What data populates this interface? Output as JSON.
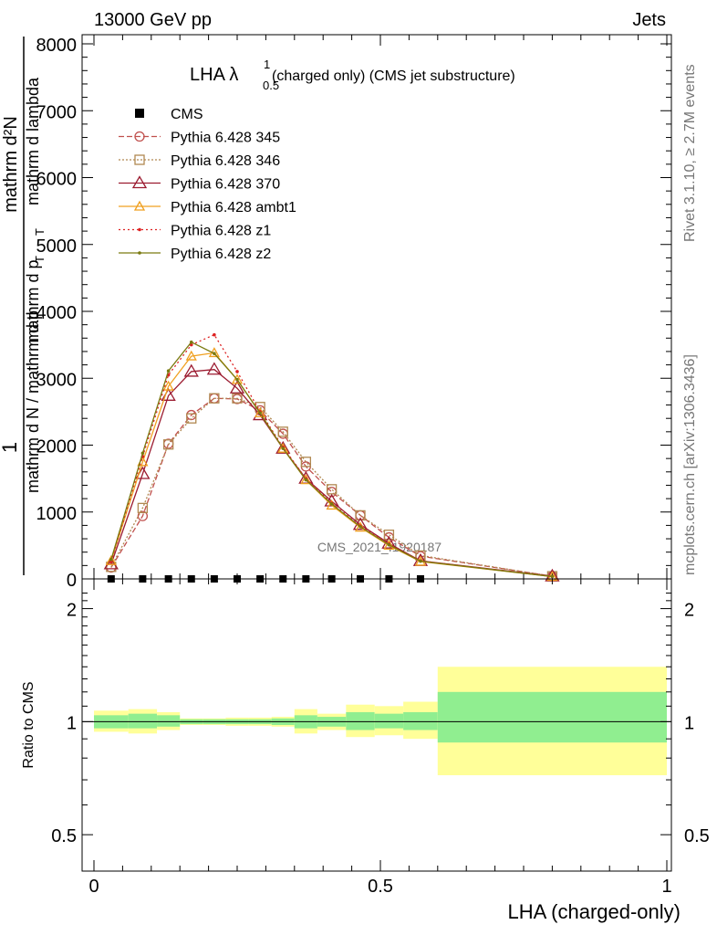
{
  "header": {
    "left": "13000 GeV pp",
    "right": "Jets",
    "rivet": "Rivet 3.1.10, ≥ 2.7M events",
    "mcplots": "mcplots.cern.ch [arXiv:1306.3436]",
    "watermark": "CMS_2021_I1920187"
  },
  "main_plot": {
    "title_main": "LHA λ",
    "title_sup": "1",
    "title_sub": "0.5",
    "title_rest": " (charged only) (CMS jet substructure)",
    "ylabel_one": "1",
    "ylabel_num": "mathrm d²N",
    "ylabel_den1": "mathrm d N / mathrm d p",
    "ylabel_den2": "T",
    "ylabel_num_alt": "mathrm d p",
    "ylabel_num_alt_sub": "T",
    "ylabel_num_alt2": " mathrm d lambda"
  },
  "ratio_plot": {
    "ylabel": "Ratio to CMS"
  },
  "xlabel": "LHA (charged-only)",
  "chart_data": {
    "type": "line",
    "xlim": [
      0,
      1
    ],
    "ylim": [
      0,
      8000
    ],
    "yticks": [
      "0",
      "1000",
      "2000",
      "3000",
      "4000",
      "5000",
      "6000",
      "7000",
      "8000"
    ],
    "yticks_values": [
      0,
      1000,
      2000,
      3000,
      4000,
      5000,
      6000,
      7000,
      8000
    ],
    "xticks": [
      "0",
      "0.5",
      "1"
    ],
    "xticks_values": [
      0,
      0.5,
      1
    ],
    "ratio_ylim": [
      0.4,
      2.4
    ],
    "ratio_yticks": [
      "0.5",
      "1",
      "2"
    ],
    "ratio_yticks_values": [
      0.5,
      1,
      2
    ],
    "log_scale_ratio": true,
    "data": {
      "name": "CMS",
      "x": [
        0.03,
        0.085,
        0.13,
        0.17,
        0.21,
        0.25,
        0.29,
        0.33,
        0.37,
        0.415,
        0.465,
        0.515,
        0.57
      ],
      "y": [
        0,
        0,
        0,
        0,
        0,
        0,
        0,
        0,
        0,
        0,
        0,
        0,
        0
      ],
      "color": "#000000"
    },
    "series": [
      {
        "name": "Pythia 6.428 345",
        "color": "#c0504d",
        "dash": "6,3",
        "marker": "circle-open",
        "x": [
          0.03,
          0.085,
          0.13,
          0.17,
          0.21,
          0.25,
          0.29,
          0.33,
          0.37,
          0.415,
          0.465,
          0.515,
          0.57,
          0.8
        ],
        "y": [
          170,
          940,
          2020,
          2450,
          2700,
          2690,
          2520,
          2170,
          1680,
          1300,
          950,
          620,
          340,
          40
        ]
      },
      {
        "name": "Pythia 6.428 346",
        "color": "#b08850",
        "dash": "2,2",
        "marker": "square-open",
        "x": [
          0.03,
          0.085,
          0.13,
          0.17,
          0.21,
          0.25,
          0.29,
          0.33,
          0.37,
          0.415,
          0.465,
          0.515,
          0.57,
          0.8
        ],
        "y": [
          180,
          1060,
          2010,
          2400,
          2700,
          2700,
          2570,
          2200,
          1750,
          1340,
          950,
          660,
          350,
          40
        ]
      },
      {
        "name": "Pythia 6.428 370",
        "color": "#9b1b30",
        "dash": "",
        "marker": "triangle-open",
        "x": [
          0.03,
          0.085,
          0.13,
          0.17,
          0.21,
          0.25,
          0.29,
          0.33,
          0.37,
          0.415,
          0.465,
          0.515,
          0.57,
          0.8
        ],
        "y": [
          220,
          1570,
          2740,
          3100,
          3130,
          2850,
          2450,
          1950,
          1500,
          1160,
          810,
          530,
          270,
          40
        ]
      },
      {
        "name": "Pythia 6.428 ambt1",
        "color": "#f0a020",
        "dash": "",
        "marker": "triangle-open-small",
        "x": [
          0.03,
          0.085,
          0.13,
          0.17,
          0.21,
          0.25,
          0.29,
          0.33,
          0.37,
          0.415,
          0.465,
          0.515,
          0.57,
          0.8
        ],
        "y": [
          270,
          1750,
          2880,
          3330,
          3380,
          2980,
          2480,
          1950,
          1480,
          1100,
          770,
          500,
          260,
          35
        ]
      },
      {
        "name": "Pythia 6.428 z1",
        "color": "#dd2222",
        "dash": "2,3",
        "marker": "dot",
        "x": [
          0.03,
          0.085,
          0.13,
          0.17,
          0.21,
          0.25,
          0.29,
          0.33,
          0.37,
          0.415,
          0.465,
          0.515,
          0.57,
          0.8
        ],
        "y": [
          260,
          1830,
          3050,
          3500,
          3650,
          3100,
          2500,
          1970,
          1500,
          1130,
          790,
          520,
          270,
          35
        ]
      },
      {
        "name": "Pythia 6.428 z2",
        "color": "#7a7a10",
        "dash": "",
        "marker": "dot",
        "x": [
          0.03,
          0.085,
          0.13,
          0.17,
          0.21,
          0.25,
          0.29,
          0.33,
          0.37,
          0.415,
          0.465,
          0.515,
          0.57,
          0.8
        ],
        "y": [
          290,
          1880,
          3110,
          3540,
          3370,
          2980,
          2480,
          1950,
          1480,
          1120,
          780,
          510,
          265,
          35
        ]
      }
    ],
    "ratio_bands": [
      {
        "x0": 0.0,
        "x1": 0.06,
        "inner": [
          0.96,
          1.04
        ],
        "outer": [
          0.94,
          1.07
        ]
      },
      {
        "x0": 0.06,
        "x1": 0.11,
        "inner": [
          0.96,
          1.05
        ],
        "outer": [
          0.93,
          1.08
        ]
      },
      {
        "x0": 0.11,
        "x1": 0.15,
        "inner": [
          0.97,
          1.04
        ],
        "outer": [
          0.95,
          1.06
        ]
      },
      {
        "x0": 0.15,
        "x1": 0.19,
        "inner": [
          0.985,
          1.015
        ],
        "outer": [
          0.98,
          1.02
        ]
      },
      {
        "x0": 0.19,
        "x1": 0.23,
        "inner": [
          0.985,
          1.015
        ],
        "outer": [
          0.98,
          1.02
        ]
      },
      {
        "x0": 0.23,
        "x1": 0.27,
        "inner": [
          0.985,
          1.015
        ],
        "outer": [
          0.975,
          1.025
        ]
      },
      {
        "x0": 0.27,
        "x1": 0.31,
        "inner": [
          0.985,
          1.015
        ],
        "outer": [
          0.975,
          1.025
        ]
      },
      {
        "x0": 0.31,
        "x1": 0.35,
        "inner": [
          0.98,
          1.02
        ],
        "outer": [
          0.97,
          1.03
        ]
      },
      {
        "x0": 0.35,
        "x1": 0.39,
        "inner": [
          0.96,
          1.04
        ],
        "outer": [
          0.93,
          1.08
        ]
      },
      {
        "x0": 0.39,
        "x1": 0.44,
        "inner": [
          0.97,
          1.03
        ],
        "outer": [
          0.95,
          1.05
        ]
      },
      {
        "x0": 0.44,
        "x1": 0.49,
        "inner": [
          0.95,
          1.06
        ],
        "outer": [
          0.91,
          1.11
        ]
      },
      {
        "x0": 0.49,
        "x1": 0.54,
        "inner": [
          0.96,
          1.05
        ],
        "outer": [
          0.92,
          1.1
        ]
      },
      {
        "x0": 0.54,
        "x1": 0.6,
        "inner": [
          0.95,
          1.06
        ],
        "outer": [
          0.9,
          1.13
        ]
      },
      {
        "x0": 0.6,
        "x1": 1.0,
        "inner": [
          0.88,
          1.2
        ],
        "outer": [
          0.72,
          1.4
        ]
      }
    ],
    "band_colors": {
      "inner": "#90ee90",
      "outer": "#ffff99"
    }
  }
}
